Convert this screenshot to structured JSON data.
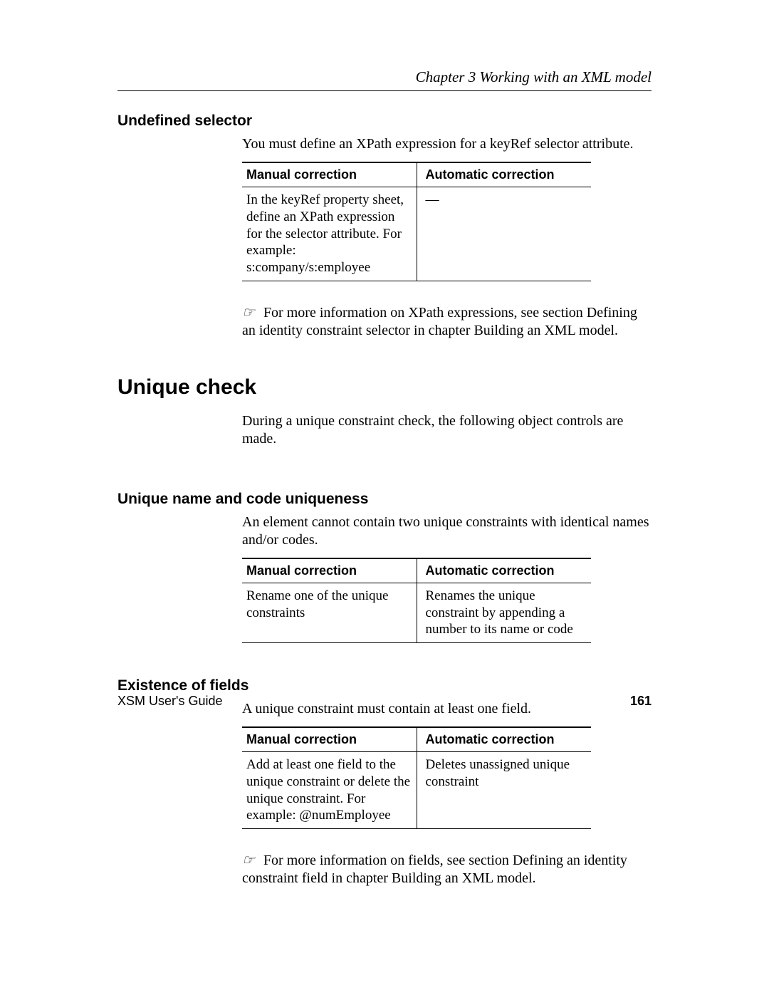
{
  "header": {
    "chapter_line": "Chapter 3    Working with an XML model"
  },
  "sections": {
    "undefined_selector": {
      "heading": "Undefined selector",
      "intro": "You must define an XPath expression for a keyRef selector attribute.",
      "table": {
        "col_manual": "Manual correction",
        "col_auto": "Automatic correction",
        "manual": "In the keyRef property sheet, define an XPath expression for the selector attribute. For example: s:company/s:employee",
        "auto": "—"
      },
      "note": "For more information on XPath expressions, see section Defining an identity constraint selector in chapter Building an XML model."
    },
    "unique_check": {
      "heading": "Unique check",
      "intro": "During a unique constraint check, the following object controls are made."
    },
    "unique_name": {
      "heading": "Unique name and code uniqueness",
      "intro": "An element cannot contain two unique constraints with identical names and/or codes.",
      "table": {
        "col_manual": "Manual correction",
        "col_auto": "Automatic correction",
        "manual": "Rename one of the unique constraints",
        "auto": "Renames the unique constraint by appending a number to its name or code"
      }
    },
    "existence": {
      "heading": "Existence of fields",
      "intro": "A unique constraint must contain at least one field.",
      "table": {
        "col_manual": "Manual correction",
        "col_auto": "Automatic correction",
        "manual": "Add at least one field to the unique constraint or delete the unique constraint. For example: @numEmployee",
        "auto": "Deletes unassigned unique constraint"
      },
      "note": "For more information on fields, see section Defining an identity constraint field in chapter Building an XML model."
    }
  },
  "footer": {
    "guide": "XSM User's Guide",
    "page": "161"
  },
  "style": {
    "page_bg": "#ffffff",
    "text_color": "#000000",
    "heading_font": "Arial",
    "body_font": "Times New Roman",
    "body_fontsize_pt": 15,
    "heading_fontsize_pt": 16,
    "h1_fontsize_pt": 22,
    "table_border_color": "#000000"
  }
}
